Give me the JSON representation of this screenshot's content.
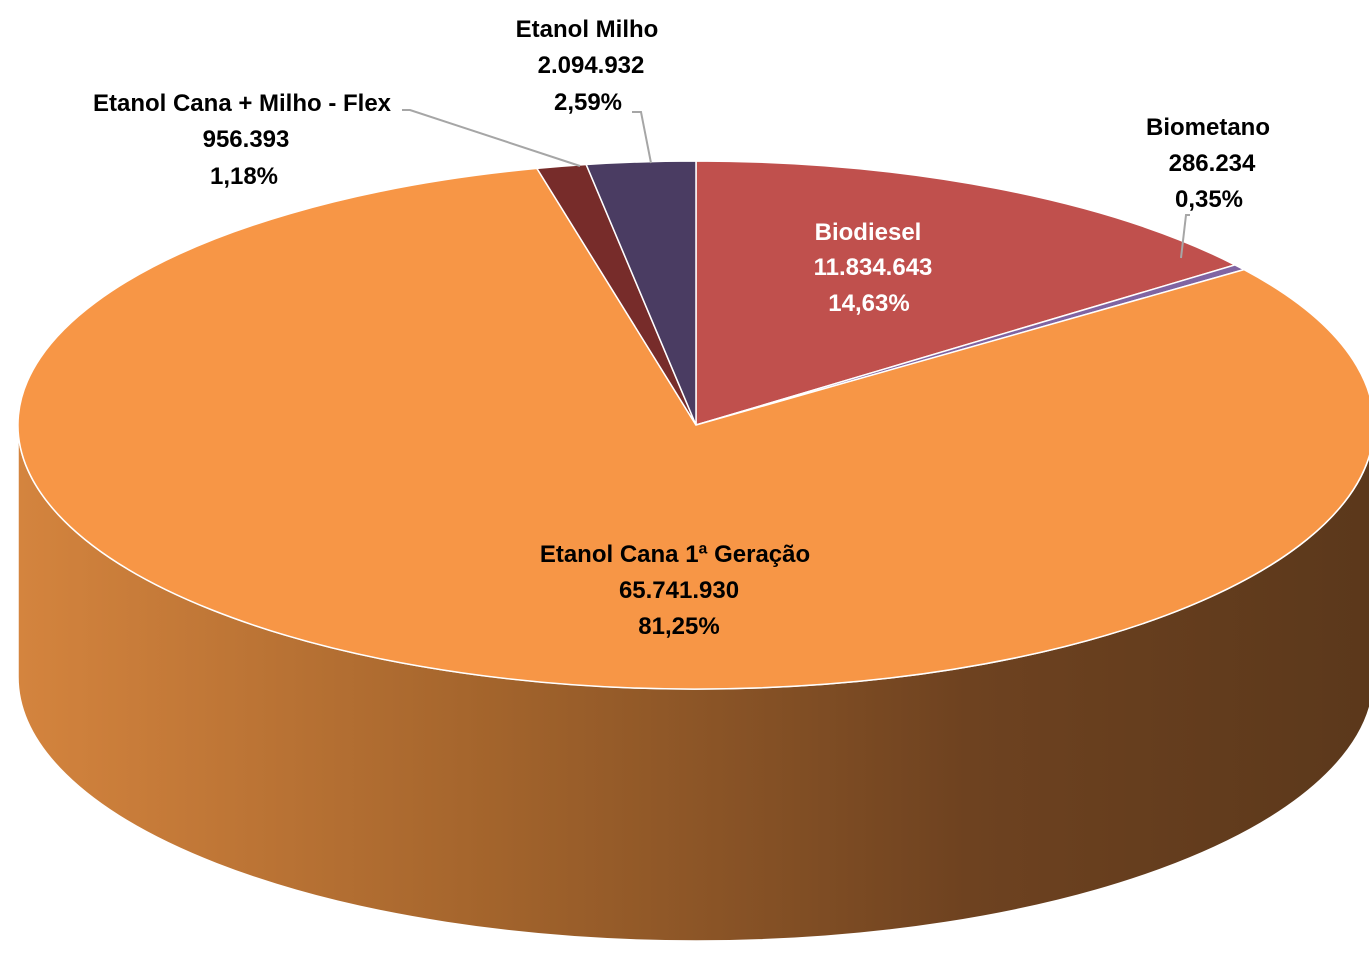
{
  "chart_data": {
    "type": "pie",
    "three_d": true,
    "title": "",
    "slices": [
      {
        "name": "Biodiesel",
        "value_label": "11.834.643",
        "percent_label": "14,63%",
        "value": 11834643,
        "percent": 14.63,
        "color": "#c0504d"
      },
      {
        "name": "Biometano",
        "value_label": "286.234",
        "percent_label": "0,35%",
        "value": 286234,
        "percent": 0.35,
        "color": "#8064a2"
      },
      {
        "name": "Etanol Cana 1ª Geração",
        "value_label": "65.741.930",
        "percent_label": "81,25%",
        "value": 65741930,
        "percent": 81.25,
        "color": "#f79646"
      },
      {
        "name": "Etanol Cana + Milho - Flex",
        "value_label": "956.393",
        "percent_label": "1,18%",
        "value": 956393,
        "percent": 1.18,
        "color": "#772c2a"
      },
      {
        "name": "Etanol Milho",
        "value_label": "2.094.932",
        "percent_label": "2,59%",
        "value": 2094932,
        "percent": 2.59,
        "color": "#4a3c62"
      }
    ]
  }
}
